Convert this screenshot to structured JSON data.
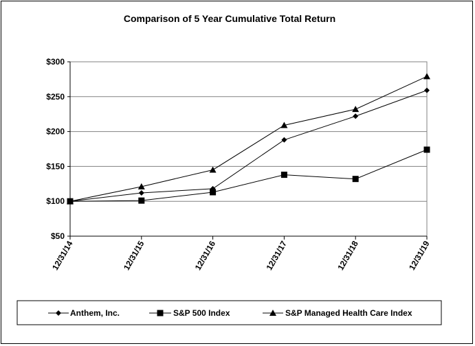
{
  "chart_data": {
    "type": "line",
    "title": "Comparison of 5 Year Cumulative Total Return",
    "xlabel": "",
    "ylabel": "",
    "categories": [
      "12/31/14",
      "12/31/15",
      "12/31/16",
      "12/31/17",
      "12/31/18",
      "12/31/19"
    ],
    "ylim": [
      50,
      300
    ],
    "yticks": [
      50,
      100,
      150,
      200,
      250,
      300
    ],
    "ytick_labels": [
      "$50",
      "$100",
      "$150",
      "$200",
      "$250",
      "$300"
    ],
    "grid": true,
    "legend_position": "bottom",
    "series": [
      {
        "name": "Anthem, Inc.",
        "marker": "diamond",
        "values": [
          100,
          112,
          118,
          188,
          222,
          259
        ]
      },
      {
        "name": "S&P 500 Index",
        "marker": "square",
        "values": [
          100,
          101,
          113,
          138,
          132,
          174
        ]
      },
      {
        "name": "S&P Managed Health Care Index",
        "marker": "triangle",
        "values": [
          100,
          121,
          145,
          209,
          232,
          279
        ]
      }
    ]
  }
}
